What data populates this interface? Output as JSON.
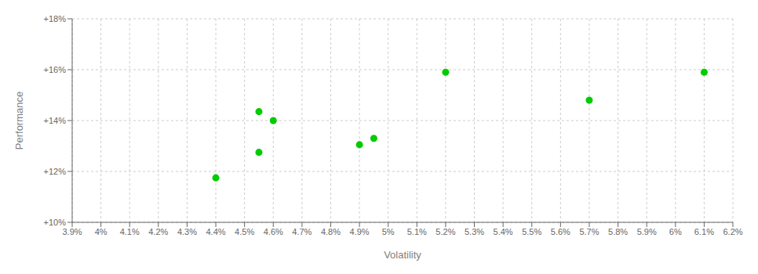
{
  "chart_data": {
    "type": "scatter",
    "xlabel": "Volatility",
    "ylabel": "Performance",
    "color": "#00cc00",
    "grid": true,
    "x": [
      0.044,
      0.0455,
      0.0455,
      0.046,
      0.049,
      0.0495,
      0.052,
      0.057,
      0.061
    ],
    "values": [
      0.1175,
      0.1275,
      0.1435,
      0.14,
      0.1305,
      0.133,
      0.159,
      0.148,
      0.159
    ],
    "xlim": [
      0.039,
      0.062
    ],
    "ylim": [
      0.1,
      0.18
    ],
    "xticks": [
      {
        "value": 0.039,
        "label": "3.9%"
      },
      {
        "value": 0.04,
        "label": "4%"
      },
      {
        "value": 0.041,
        "label": "4.1%"
      },
      {
        "value": 0.042,
        "label": "4.2%"
      },
      {
        "value": 0.043,
        "label": "4.3%"
      },
      {
        "value": 0.044,
        "label": "4.4%"
      },
      {
        "value": 0.045,
        "label": "4.5%"
      },
      {
        "value": 0.046,
        "label": "4.6%"
      },
      {
        "value": 0.047,
        "label": "4.7%"
      },
      {
        "value": 0.048,
        "label": "4.8%"
      },
      {
        "value": 0.049,
        "label": "4.9%"
      },
      {
        "value": 0.05,
        "label": "5%"
      },
      {
        "value": 0.051,
        "label": "5.1%"
      },
      {
        "value": 0.052,
        "label": "5.2%"
      },
      {
        "value": 0.053,
        "label": "5.3%"
      },
      {
        "value": 0.054,
        "label": "5.4%"
      },
      {
        "value": 0.055,
        "label": "5.5%"
      },
      {
        "value": 0.056,
        "label": "5.6%"
      },
      {
        "value": 0.057,
        "label": "5.7%"
      },
      {
        "value": 0.058,
        "label": "5.8%"
      },
      {
        "value": 0.059,
        "label": "5.9%"
      },
      {
        "value": 0.06,
        "label": "6%"
      },
      {
        "value": 0.061,
        "label": "6.1%"
      },
      {
        "value": 0.062,
        "label": "6.2%"
      }
    ],
    "yticks": [
      {
        "value": 0.1,
        "label": "+10%"
      },
      {
        "value": 0.12,
        "label": "+12%"
      },
      {
        "value": 0.14,
        "label": "+14%"
      },
      {
        "value": 0.16,
        "label": "+16%"
      },
      {
        "value": 0.18,
        "label": "+18%"
      }
    ]
  }
}
